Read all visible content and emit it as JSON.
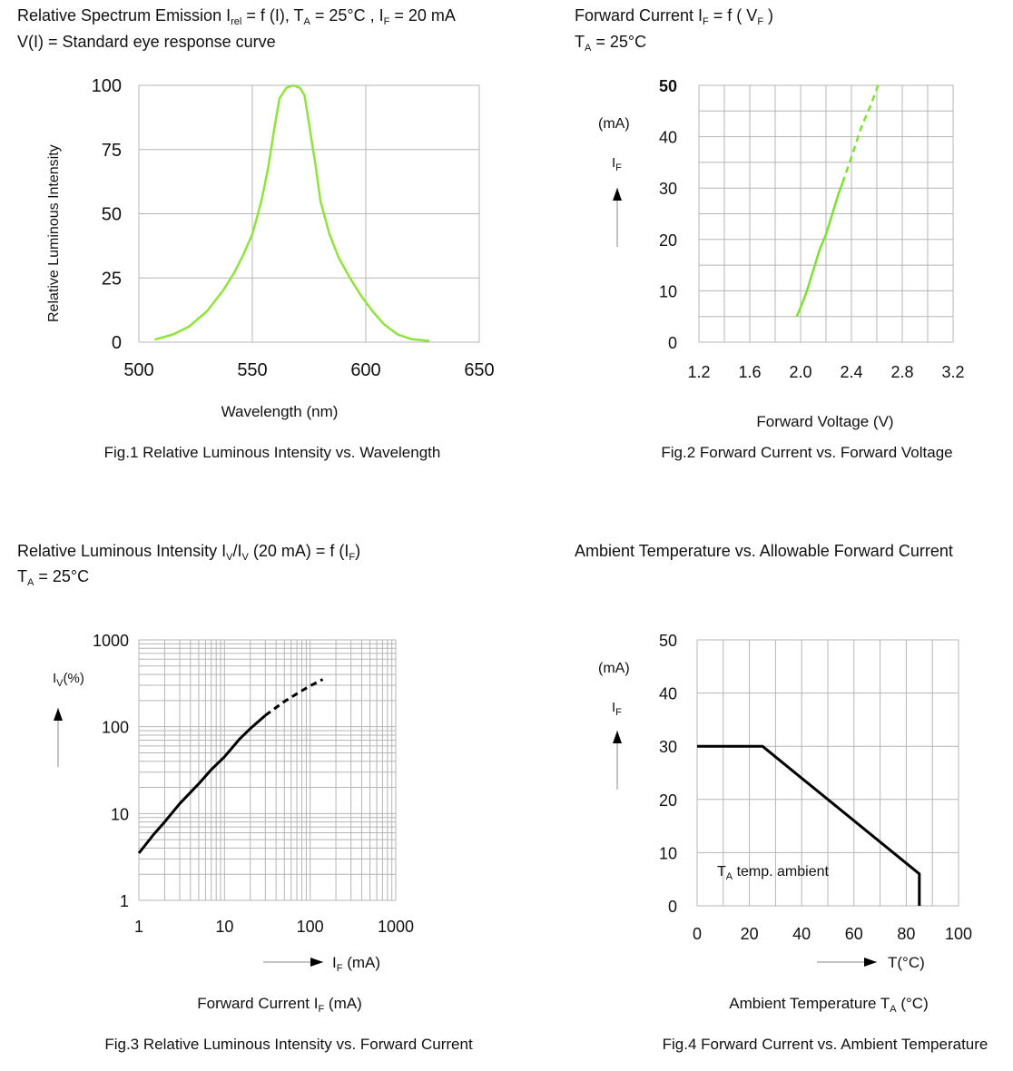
{
  "chart_data": [
    {
      "type": "line",
      "title_line1": [
        "Relative Spectrum Emission I",
        "rel",
        " = f (I), T",
        "A",
        " = 25°C , I",
        "F",
        " = 20  mA"
      ],
      "title_line2": "V(I) = Standard eye response curve",
      "ylabel": "Relative Luminous Intensity",
      "xlabel": "Wavelength (nm)",
      "caption": "Fig.1 Relative Luminous Intensity vs. Wavelength",
      "xlim": [
        500,
        650
      ],
      "ylim": [
        0,
        100
      ],
      "xticks": [
        500,
        550,
        600,
        650
      ],
      "yticks": [
        0,
        25,
        50,
        75,
        100
      ],
      "grid": true,
      "grid_x_step": 50,
      "grid_y_step": 25,
      "line_color": "#8fe33b",
      "series": [
        {
          "style": "solid",
          "points": [
            [
              507,
              1
            ],
            [
              515,
              3
            ],
            [
              522,
              6
            ],
            [
              530,
              12
            ],
            [
              537,
              20
            ],
            [
              542,
              27
            ],
            [
              546,
              34
            ],
            [
              550,
              42
            ],
            [
              554,
              55
            ],
            [
              557,
              68
            ],
            [
              560,
              85
            ],
            [
              562,
              95
            ],
            [
              565,
              99
            ],
            [
              568,
              100
            ],
            [
              571,
              99
            ],
            [
              573,
              96
            ],
            [
              575,
              85
            ],
            [
              578,
              68
            ],
            [
              580,
              55
            ],
            [
              584,
              42
            ],
            [
              588,
              33
            ],
            [
              593,
              25
            ],
            [
              598,
              18
            ],
            [
              603,
              12
            ],
            [
              608,
              7
            ],
            [
              614,
              3
            ],
            [
              620,
              1.2
            ],
            [
              628,
              0.5
            ]
          ]
        }
      ]
    },
    {
      "type": "line",
      "title_line1": [
        "Forward Current I",
        "F",
        " = f ( V",
        "F",
        " )"
      ],
      "title_line2": [
        "T",
        "A",
        " = 25°C"
      ],
      "y_unit": "(mA)",
      "y_symbol": [
        "I",
        "F"
      ],
      "xlabel": "Forward Voltage (V)",
      "caption": "Fig.2 Forward Current vs. Forward Voltage",
      "xlim": [
        1.2,
        3.2
      ],
      "ylim": [
        0,
        50
      ],
      "xticks": [
        "1.2",
        "1.6",
        "2.0",
        "2.4",
        "2.8",
        "3.2"
      ],
      "yticks": [
        0,
        10,
        20,
        30,
        40,
        50
      ],
      "grid": true,
      "grid_x_step": 0.2,
      "grid_y_step": 5,
      "line_color": "#7ee032",
      "series": [
        {
          "style": "solid",
          "points": [
            [
              1.97,
              5
            ],
            [
              2.02,
              8
            ],
            [
              2.05,
              10
            ],
            [
              2.1,
              14
            ],
            [
              2.15,
              18
            ],
            [
              2.2,
              21
            ],
            [
              2.25,
              25
            ],
            [
              2.3,
              29
            ],
            [
              2.33,
              31
            ]
          ]
        },
        {
          "style": "dashed",
          "points": [
            [
              2.33,
              31
            ],
            [
              2.4,
              36
            ],
            [
              2.48,
              42
            ],
            [
              2.55,
              46
            ],
            [
              2.61,
              50
            ]
          ]
        }
      ]
    },
    {
      "type": "line",
      "title_line1": [
        "Relative Luminous Intensity I",
        "V",
        "/I",
        "V",
        " (20 mA) = f (I",
        "F",
        ")"
      ],
      "title_line2": [
        "T",
        "A",
        " = 25°C"
      ],
      "y_symbol": [
        "I",
        "V",
        "(%)"
      ],
      "x_symbol": [
        "I",
        "F",
        " (mA)"
      ],
      "xlabel": [
        "Forward Current I",
        "F",
        " (mA)"
      ],
      "caption": "Fig.3 Relative Luminous Intensity vs. Forward Current",
      "x_scale": "log",
      "y_scale": "log",
      "xlim": [
        1,
        1000
      ],
      "ylim": [
        1,
        1000
      ],
      "xticks": [
        1,
        10,
        100,
        1000
      ],
      "yticks": [
        1,
        10,
        100,
        1000
      ],
      "grid": true,
      "line_color": "#000000",
      "series": [
        {
          "style": "solid",
          "points": [
            [
              1,
              3.5
            ],
            [
              1.5,
              5.8
            ],
            [
              2,
              8
            ],
            [
              3,
              13
            ],
            [
              5,
              22
            ],
            [
              7,
              32
            ],
            [
              10,
              45
            ],
            [
              15,
              72
            ],
            [
              20,
              95
            ],
            [
              30,
              135
            ]
          ]
        },
        {
          "style": "dashed",
          "points": [
            [
              30,
              135
            ],
            [
              50,
              195
            ],
            [
              80,
              260
            ],
            [
              100,
              295
            ],
            [
              140,
              350
            ]
          ]
        }
      ]
    },
    {
      "type": "line",
      "title_line1": [
        "Ambient Temperature vs. Allowable Forward Current"
      ],
      "y_unit": "(mA)",
      "y_symbol": [
        "I",
        "F"
      ],
      "x_symbol": "T(°C)",
      "annotation": [
        "T",
        "A",
        " temp. ambient"
      ],
      "xlabel": [
        "Ambient Temperature T",
        "A",
        " (°C)"
      ],
      "caption": "Fig.4 Forward Current vs. Ambient Temperature",
      "xlim": [
        0,
        100
      ],
      "ylim": [
        0,
        50
      ],
      "xticks": [
        0,
        20,
        40,
        60,
        80,
        100
      ],
      "yticks": [
        0,
        10,
        20,
        30,
        40,
        50
      ],
      "grid": true,
      "grid_x_step": 10,
      "grid_y_step": 10,
      "line_color": "#000000",
      "series": [
        {
          "style": "solid",
          "points": [
            [
              0,
              30
            ],
            [
              25,
              30
            ],
            [
              85,
              6
            ],
            [
              85,
              0
            ]
          ]
        }
      ]
    }
  ]
}
